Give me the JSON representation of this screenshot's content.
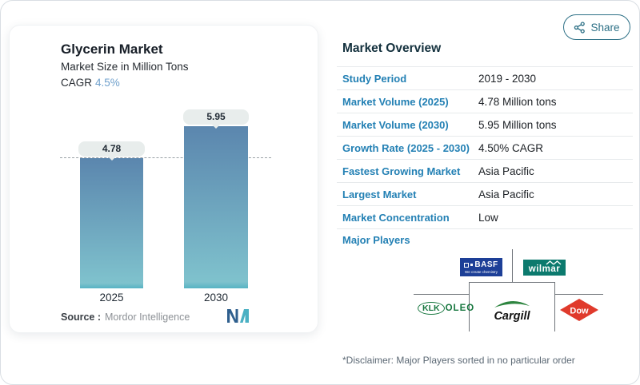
{
  "header": {
    "share_label": "Share"
  },
  "chart_card": {
    "title": "Glycerin Market",
    "subtitle": "Market Size in Million Tons",
    "cagr_label": "CAGR",
    "cagr_value": "4.5%",
    "source_label": "Source :",
    "source_value": "Mordor Intelligence"
  },
  "chart_data": {
    "type": "bar",
    "title": "Glycerin Market",
    "subtitle": "Market Size in Million Tons",
    "unit": "Million Tons",
    "cagr": "4.5%",
    "categories": [
      "2025",
      "2030"
    ],
    "values": [
      4.78,
      5.95
    ],
    "bar_labels": [
      "4.78",
      "5.95"
    ],
    "reference_line": 4.78,
    "ylim": [
      0,
      5.95
    ],
    "grid": false,
    "colors": {
      "bar_top": "#5b86ae",
      "bar_bottom": "#7fc2cd",
      "label_pill_bg": "#e8edec"
    }
  },
  "overview": {
    "title": "Market Overview",
    "rows": [
      {
        "label": "Study Period",
        "value": "2019 - 2030"
      },
      {
        "label": "Market Volume (2025)",
        "value": "4.78 Million tons"
      },
      {
        "label": "Market Volume (2030)",
        "value": "5.95 Million tons"
      },
      {
        "label": "Growth Rate (2025 - 2030)",
        "value": "4.50% CAGR"
      },
      {
        "label": "Fastest Growing Market",
        "value": "Asia Pacific"
      },
      {
        "label": "Largest Market",
        "value": "Asia Pacific"
      },
      {
        "label": "Market Concentration",
        "value": "Low"
      }
    ],
    "major_players_label": "Major Players",
    "players": {
      "basf": {
        "name": "BASF",
        "tagline": "We create chemistry",
        "color": "#1d3f97"
      },
      "wilmar": {
        "name": "wilmar",
        "color": "#0c7a6e"
      },
      "klk": {
        "oval": "KLK",
        "rest": "OLEO",
        "color": "#17773f"
      },
      "cargill": {
        "name": "Cargill",
        "color": "#121212",
        "leaf_color": "#2e8540"
      },
      "dow": {
        "name": "Dow",
        "color": "#e03a2c"
      }
    },
    "disclaimer": "*Disclaimer: Major Players sorted in no particular order"
  },
  "colors": {
    "accent_label_blue": "#2380b4",
    "share_teal": "#2d7086",
    "cagr_blue": "#6fa0cc",
    "heading_navy": "#13303d"
  }
}
